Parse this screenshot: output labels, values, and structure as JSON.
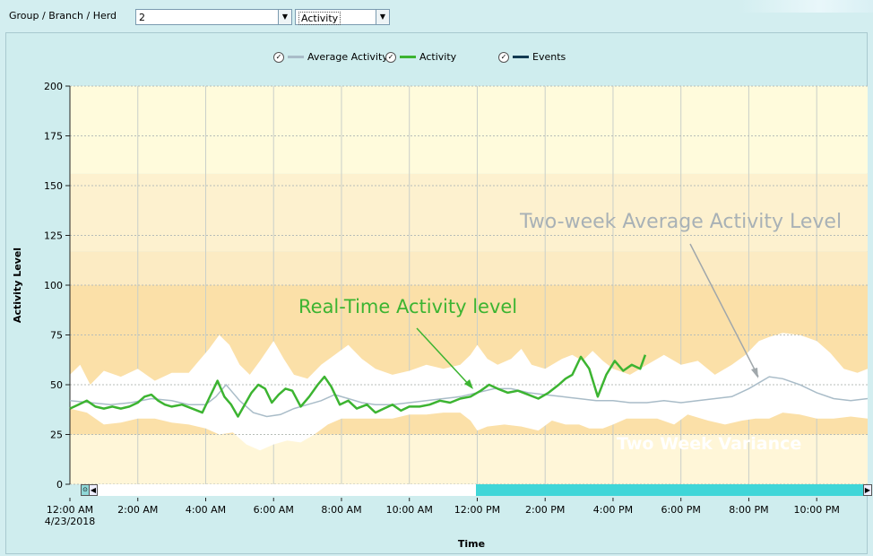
{
  "toolbar": {
    "group_label": "Group / Branch / Herd",
    "group_value": "2",
    "metric_value": "Activity"
  },
  "legend": [
    {
      "name": "Average Activity",
      "color": "#a9bcc8"
    },
    {
      "name": "Activity",
      "color": "#3cb431"
    },
    {
      "name": "Events",
      "color": "#123a52"
    }
  ],
  "chart_data": {
    "type": "line",
    "ylabel": "Activity Level",
    "xlabel": "Time",
    "ylim": [
      0,
      200
    ],
    "xlim_hours": [
      0,
      23.5
    ],
    "y_ticks": [
      0,
      25,
      50,
      75,
      100,
      125,
      150,
      175,
      200
    ],
    "x_ticks": [
      {
        "h": 0,
        "label": "12:00 AM",
        "sublabel": "4/23/2018"
      },
      {
        "h": 2,
        "label": "2:00 AM"
      },
      {
        "h": 4,
        "label": "4:00 AM"
      },
      {
        "h": 6,
        "label": "6:00 AM"
      },
      {
        "h": 8,
        "label": "8:00 AM"
      },
      {
        "h": 10,
        "label": "10:00 AM"
      },
      {
        "h": 12,
        "label": "12:00 PM"
      },
      {
        "h": 14,
        "label": "2:00 PM"
      },
      {
        "h": 16,
        "label": "4:00 PM"
      },
      {
        "h": 18,
        "label": "6:00 PM"
      },
      {
        "h": 20,
        "label": "8:00 PM"
      },
      {
        "h": 22,
        "label": "10:00 PM"
      }
    ],
    "bands": [
      {
        "from": 0,
        "to": 25,
        "color": "#fff6d8"
      },
      {
        "from": 25,
        "to": 100,
        "color": "#fbe0a8"
      },
      {
        "from": 100,
        "to": 117,
        "color": "#fcebc3"
      },
      {
        "from": 117,
        "to": 156,
        "color": "#fdf1cf"
      },
      {
        "from": 156,
        "to": 200,
        "color": "#fffbdc"
      }
    ],
    "variance": {
      "upper": [
        [
          0,
          55
        ],
        [
          0.3,
          60
        ],
        [
          0.6,
          50
        ],
        [
          1,
          57
        ],
        [
          1.5,
          54
        ],
        [
          2,
          58
        ],
        [
          2.5,
          52
        ],
        [
          3,
          56
        ],
        [
          3.5,
          56
        ],
        [
          3.8,
          62
        ],
        [
          4.1,
          68
        ],
        [
          4.4,
          75
        ],
        [
          4.7,
          70
        ],
        [
          5,
          60
        ],
        [
          5.3,
          55
        ],
        [
          5.6,
          62
        ],
        [
          6,
          72
        ],
        [
          6.3,
          63
        ],
        [
          6.6,
          55
        ],
        [
          7,
          53
        ],
        [
          7.4,
          60
        ],
        [
          7.8,
          65
        ],
        [
          8.2,
          70
        ],
        [
          8.6,
          63
        ],
        [
          9,
          58
        ],
        [
          9.5,
          55
        ],
        [
          10,
          57
        ],
        [
          10.5,
          60
        ],
        [
          11,
          58
        ],
        [
          11.5,
          60
        ],
        [
          11.8,
          65
        ],
        [
          12,
          70
        ],
        [
          12.3,
          63
        ],
        [
          12.6,
          60
        ],
        [
          13,
          63
        ],
        [
          13.3,
          68
        ],
        [
          13.6,
          60
        ],
        [
          14,
          58
        ],
        [
          14.5,
          63
        ],
        [
          14.8,
          65
        ],
        [
          15.1,
          62
        ],
        [
          15.4,
          67
        ],
        [
          15.7,
          62
        ],
        [
          16,
          58
        ],
        [
          16.5,
          55
        ],
        [
          17,
          60
        ],
        [
          17.5,
          65
        ],
        [
          18,
          60
        ],
        [
          18.5,
          62
        ],
        [
          19,
          55
        ],
        [
          19.5,
          60
        ],
        [
          19.9,
          65
        ],
        [
          20.3,
          72
        ],
        [
          20.6,
          74
        ],
        [
          21,
          76
        ],
        [
          21.5,
          75
        ],
        [
          22,
          72
        ],
        [
          22.4,
          66
        ],
        [
          22.8,
          58
        ],
        [
          23.2,
          56
        ],
        [
          23.5,
          58
        ]
      ],
      "lower": [
        [
          0,
          38
        ],
        [
          0.5,
          36
        ],
        [
          1,
          30
        ],
        [
          1.5,
          31
        ],
        [
          2,
          33
        ],
        [
          2.5,
          33
        ],
        [
          3,
          31
        ],
        [
          3.5,
          30
        ],
        [
          4,
          28
        ],
        [
          4.4,
          25
        ],
        [
          4.8,
          26
        ],
        [
          5.2,
          20
        ],
        [
          5.6,
          17
        ],
        [
          6,
          20
        ],
        [
          6.4,
          22
        ],
        [
          6.8,
          21
        ],
        [
          7.2,
          25
        ],
        [
          7.6,
          30
        ],
        [
          8,
          33
        ],
        [
          8.5,
          33
        ],
        [
          9,
          33
        ],
        [
          9.5,
          33
        ],
        [
          10,
          35
        ],
        [
          10.5,
          35
        ],
        [
          11,
          36
        ],
        [
          11.5,
          36
        ],
        [
          11.8,
          32
        ],
        [
          12,
          27
        ],
        [
          12.3,
          29
        ],
        [
          12.8,
          30
        ],
        [
          13.3,
          29
        ],
        [
          13.8,
          27
        ],
        [
          14.2,
          32
        ],
        [
          14.6,
          30
        ],
        [
          15,
          30
        ],
        [
          15.3,
          28
        ],
        [
          15.7,
          28
        ],
        [
          16,
          30
        ],
        [
          16.4,
          33
        ],
        [
          16.8,
          33
        ],
        [
          17.3,
          33
        ],
        [
          17.8,
          30
        ],
        [
          18.2,
          35
        ],
        [
          18.8,
          32
        ],
        [
          19.3,
          30
        ],
        [
          19.8,
          32
        ],
        [
          20.2,
          33
        ],
        [
          20.6,
          33
        ],
        [
          21,
          36
        ],
        [
          21.5,
          35
        ],
        [
          22,
          33
        ],
        [
          22.5,
          33
        ],
        [
          23,
          34
        ],
        [
          23.5,
          33
        ]
      ]
    },
    "series": [
      {
        "name": "Average Activity",
        "color": "#a9bcc8",
        "points": [
          [
            0,
            42
          ],
          [
            0.6,
            41
          ],
          [
            1.2,
            40
          ],
          [
            1.8,
            41
          ],
          [
            2.4,
            43
          ],
          [
            3,
            42
          ],
          [
            3.5,
            40
          ],
          [
            4,
            40
          ],
          [
            4.3,
            44
          ],
          [
            4.6,
            50
          ],
          [
            5,
            42
          ],
          [
            5.4,
            36
          ],
          [
            5.8,
            34
          ],
          [
            6.2,
            35
          ],
          [
            6.6,
            38
          ],
          [
            7,
            40
          ],
          [
            7.4,
            42
          ],
          [
            7.8,
            45
          ],
          [
            8.2,
            43
          ],
          [
            8.6,
            41
          ],
          [
            9,
            40
          ],
          [
            9.5,
            40
          ],
          [
            10,
            41
          ],
          [
            10.5,
            42
          ],
          [
            11,
            43
          ],
          [
            11.5,
            44
          ],
          [
            12,
            46
          ],
          [
            12.5,
            48
          ],
          [
            13,
            48
          ],
          [
            13.5,
            46
          ],
          [
            14,
            45
          ],
          [
            14.5,
            44
          ],
          [
            15,
            43
          ],
          [
            15.5,
            42
          ],
          [
            16,
            42
          ],
          [
            16.5,
            41
          ],
          [
            17,
            41
          ],
          [
            17.5,
            42
          ],
          [
            18,
            41
          ],
          [
            18.5,
            42
          ],
          [
            19,
            43
          ],
          [
            19.5,
            44
          ],
          [
            20,
            48
          ],
          [
            20.3,
            51
          ],
          [
            20.6,
            54
          ],
          [
            21,
            53
          ],
          [
            21.5,
            50
          ],
          [
            22,
            46
          ],
          [
            22.5,
            43
          ],
          [
            23,
            42
          ],
          [
            23.5,
            43
          ]
        ]
      },
      {
        "name": "Activity",
        "color": "#3cb431",
        "points": [
          [
            0,
            38
          ],
          [
            0.25,
            40
          ],
          [
            0.5,
            42
          ],
          [
            0.75,
            39
          ],
          [
            1,
            38
          ],
          [
            1.25,
            39
          ],
          [
            1.5,
            38
          ],
          [
            1.75,
            39
          ],
          [
            2,
            41
          ],
          [
            2.2,
            44
          ],
          [
            2.4,
            45
          ],
          [
            2.6,
            42
          ],
          [
            2.8,
            40
          ],
          [
            3,
            39
          ],
          [
            3.3,
            40
          ],
          [
            3.6,
            38
          ],
          [
            3.9,
            36
          ],
          [
            4.15,
            45
          ],
          [
            4.35,
            52
          ],
          [
            4.55,
            44
          ],
          [
            4.75,
            40
          ],
          [
            4.95,
            34
          ],
          [
            5.15,
            40
          ],
          [
            5.35,
            46
          ],
          [
            5.55,
            50
          ],
          [
            5.75,
            48
          ],
          [
            5.95,
            41
          ],
          [
            6.15,
            45
          ],
          [
            6.35,
            48
          ],
          [
            6.55,
            47
          ],
          [
            6.8,
            39
          ],
          [
            7.05,
            44
          ],
          [
            7.3,
            50
          ],
          [
            7.5,
            54
          ],
          [
            7.7,
            49
          ],
          [
            7.95,
            40
          ],
          [
            8.2,
            42
          ],
          [
            8.45,
            38
          ],
          [
            8.75,
            40
          ],
          [
            9,
            36
          ],
          [
            9.25,
            38
          ],
          [
            9.5,
            40
          ],
          [
            9.75,
            37
          ],
          [
            10,
            39
          ],
          [
            10.3,
            39
          ],
          [
            10.6,
            40
          ],
          [
            10.9,
            42
          ],
          [
            11.2,
            41
          ],
          [
            11.5,
            43
          ],
          [
            11.8,
            44
          ],
          [
            12.1,
            47
          ],
          [
            12.35,
            50
          ],
          [
            12.6,
            48
          ],
          [
            12.9,
            46
          ],
          [
            13.2,
            47
          ],
          [
            13.5,
            45
          ],
          [
            13.8,
            43
          ],
          [
            14.1,
            46
          ],
          [
            14.4,
            50
          ],
          [
            14.6,
            53
          ],
          [
            14.8,
            55
          ],
          [
            15.05,
            64
          ],
          [
            15.3,
            58
          ],
          [
            15.55,
            44
          ],
          [
            15.8,
            55
          ],
          [
            16.05,
            62
          ],
          [
            16.3,
            57
          ],
          [
            16.55,
            60
          ],
          [
            16.8,
            58
          ],
          [
            16.95,
            65
          ]
        ]
      }
    ],
    "annotations": [
      {
        "text": "Two-week Average Activity Level",
        "color": "#a8b1b6"
      },
      {
        "text": "Real-Time Activity level",
        "color": "#3cb431"
      },
      {
        "text": "Two Week Variance",
        "color": "#ffffff"
      }
    ]
  }
}
